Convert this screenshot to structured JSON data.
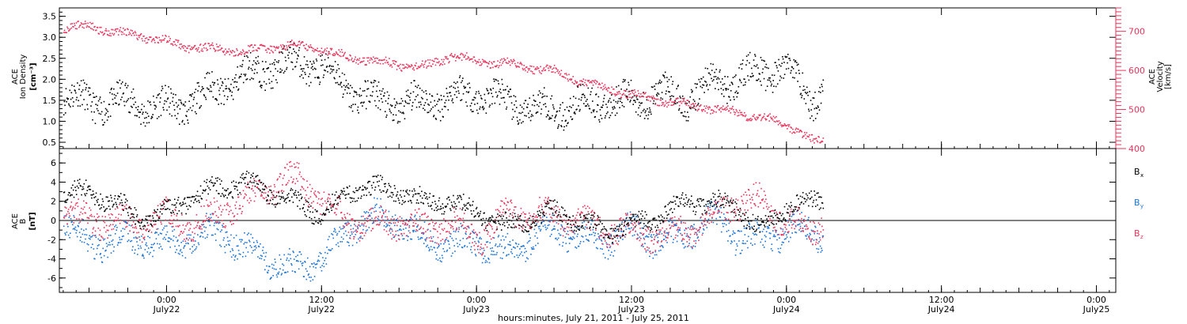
{
  "colors": {
    "black": "#000000",
    "pink": "#e8345c",
    "blue": "#1a73d6"
  },
  "chart_data": [
    {
      "type": "scatter",
      "panel": "plasma",
      "xlabel": "hours:minutes, July 21, 2011 - July 25, 2011",
      "ylabel_lines": [
        "ACE",
        "Ion Density"
      ],
      "ylabel_unit": "[cm⁻³]",
      "y2label_lines": [
        "ACE",
        "Velocity"
      ],
      "y2label_unit": "[km/s]",
      "ylim": [
        0.35,
        3.7
      ],
      "y_ticks": [
        0.5,
        1.0,
        1.5,
        2.0,
        2.5,
        3.0,
        3.5
      ],
      "y_tick_labels": [
        "0.5",
        "1.0",
        "1.5",
        "2.0",
        "2.5",
        "3.0",
        "3.5"
      ],
      "y2lim": [
        400,
        760
      ],
      "y2_ticks": [
        400,
        500,
        600,
        700
      ],
      "y2_tick_labels": [
        "400",
        "500",
        "600",
        "700"
      ],
      "xlim_hours": [
        -8.3,
        73.5
      ],
      "data_end_hours": 50.8,
      "series": [
        {
          "color": "black",
          "axis": "left",
          "x_hours": [
            -8,
            -6,
            -4,
            -2,
            0,
            2,
            4,
            6,
            8,
            10,
            12,
            14,
            16,
            18,
            20,
            22,
            24,
            26,
            28,
            30,
            32,
            34,
            36,
            38,
            40,
            42,
            44,
            46,
            48,
            50,
            50.8
          ],
          "y": [
            1.7,
            1.4,
            1.5,
            1.4,
            1.3,
            1.5,
            1.8,
            2.1,
            2.3,
            2.4,
            2.3,
            1.8,
            1.5,
            1.4,
            1.5,
            1.6,
            1.7,
            1.5,
            1.3,
            1.3,
            1.4,
            1.5,
            1.5,
            1.7,
            1.5,
            1.9,
            2.0,
            2.2,
            2.3,
            1.5,
            1.9
          ]
        },
        {
          "color": "pink",
          "axis": "right",
          "x_hours": [
            -8,
            -6,
            -4,
            -2,
            0,
            2,
            4,
            6,
            8,
            10,
            12,
            14,
            16,
            18,
            20,
            22,
            24,
            26,
            28,
            30,
            32,
            34,
            36,
            38,
            40,
            42,
            44,
            46,
            48,
            50,
            50.8
          ],
          "y": [
            710,
            715,
            700,
            690,
            675,
            660,
            655,
            650,
            660,
            665,
            655,
            635,
            625,
            615,
            610,
            640,
            625,
            620,
            610,
            600,
            575,
            555,
            540,
            525,
            515,
            505,
            495,
            480,
            465,
            420,
            420
          ]
        }
      ]
    },
    {
      "type": "scatter",
      "panel": "magnetic",
      "ylabel_lines": [
        "ACE",
        "B"
      ],
      "ylabel_unit": "[nT]",
      "ylim": [
        -7.5,
        7.5
      ],
      "y_ticks": [
        -6,
        -4,
        -2,
        0,
        2,
        4,
        6
      ],
      "y_tick_labels": [
        "-6",
        "-4",
        "-2",
        "0",
        "2",
        "4",
        "6"
      ],
      "x_ticks_hours": [
        0,
        12,
        24,
        36,
        48,
        60,
        72
      ],
      "x_tick_labels": [
        "0:00",
        "12:00",
        "0:00",
        "12:00",
        "0:00",
        "12:00",
        "0:00"
      ],
      "x_tick_dates": [
        "July22",
        "July22",
        "July23",
        "July23",
        "July24",
        "July24",
        "July25"
      ],
      "legend": [
        {
          "base": "B",
          "sub": "x",
          "color": "black"
        },
        {
          "base": "B",
          "sub": "y",
          "color": "blue"
        },
        {
          "base": "B",
          "sub": "z",
          "color": "pink"
        }
      ],
      "series": [
        {
          "name": "Bx",
          "color": "black",
          "x_hours": [
            -8,
            -6,
            -4,
            -2,
            0,
            2,
            4,
            6,
            8,
            10,
            12,
            14,
            16,
            18,
            20,
            22,
            24,
            26,
            28,
            30,
            32,
            34,
            36,
            38,
            40,
            42,
            44,
            46,
            48,
            50,
            50.8
          ],
          "y": [
            3.0,
            3.0,
            2.0,
            0.0,
            1.0,
            2.5,
            3.5,
            4.0,
            3.0,
            2.0,
            0.5,
            3.0,
            3.5,
            3.0,
            2.0,
            2.0,
            1.0,
            -0.5,
            0.0,
            1.0,
            0.0,
            -1.0,
            -0.5,
            0.5,
            2.0,
            2.0,
            1.5,
            -1.0,
            1.5,
            2.0,
            2.5
          ]
        },
        {
          "name": "By",
          "color": "blue",
          "x_hours": [
            -8,
            -6,
            -4,
            -2,
            0,
            2,
            4,
            6,
            8,
            10,
            12,
            14,
            16,
            18,
            20,
            22,
            24,
            26,
            28,
            30,
            32,
            34,
            36,
            38,
            40,
            42,
            44,
            46,
            48,
            50,
            50.8
          ],
          "y": [
            0.0,
            -2.5,
            -2.0,
            -2.0,
            -2.5,
            -1.5,
            -1.0,
            -3.0,
            -4.0,
            -5.0,
            -4.0,
            -1.0,
            0.5,
            0.0,
            -2.0,
            -2.5,
            -2.0,
            -3.5,
            -2.0,
            -1.0,
            -1.5,
            -2.0,
            -1.0,
            -2.0,
            -1.5,
            0.5,
            -1.5,
            -2.0,
            -1.0,
            -1.0,
            -2.0
          ]
        },
        {
          "name": "Bz",
          "color": "pink",
          "x_hours": [
            -8,
            -6,
            -4,
            -2,
            0,
            2,
            4,
            6,
            8,
            10,
            12,
            14,
            16,
            18,
            20,
            22,
            24,
            26,
            28,
            30,
            32,
            34,
            36,
            38,
            40,
            42,
            44,
            46,
            48,
            50,
            50.8
          ],
          "y": [
            1.0,
            0.0,
            0.0,
            -0.5,
            0.5,
            -0.5,
            1.0,
            2.0,
            3.5,
            4.5,
            2.0,
            0.0,
            -0.5,
            0.0,
            -1.0,
            0.0,
            -2.0,
            0.5,
            1.0,
            0.5,
            0.0,
            -1.0,
            -1.0,
            -1.5,
            -1.0,
            0.0,
            2.0,
            2.0,
            0.0,
            -1.0,
            0.0
          ]
        }
      ]
    }
  ]
}
